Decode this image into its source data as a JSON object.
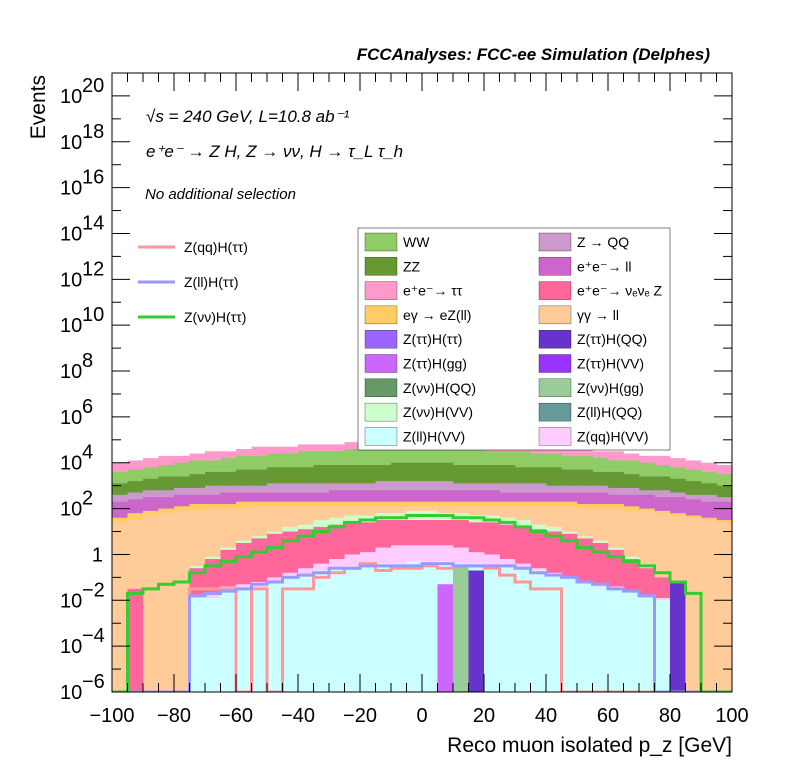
{
  "header": {
    "title": "FCCAnalyses: FCC-ee Simulation (Delphes)",
    "energy_line": "√s = 240 GeV, L=10.8 ab⁻¹",
    "process_line": "e⁺e⁻ → Z H, Z → νν, H → τ_L τ_h",
    "selection_line": "No additional selection"
  },
  "colors": {
    "WW": "#8fcc66",
    "ZZ": "#669933",
    "ee_tautau": "#ff99cc",
    "egamma_eZll": "#ffcc66",
    "Ztautau_Htautau": "#9966ff",
    "Ztautau_Hgg": "#cc66ff",
    "Znunu_HQQ": "#669966",
    "Znunu_HVV": "#ccffcc",
    "Zll_HVV": "#ccffff",
    "Z_QQ": "#cc99cc",
    "ee_ll": "#cc66cc",
    "ee_nunuZ": "#ff6699",
    "gammagamma_ll": "#ffcc99",
    "Ztautau_HQQ": "#6633cc",
    "Ztautau_HVV": "#9933ff",
    "Znunu_Hgg": "#99cc99",
    "Zll_HQQ": "#669999",
    "Zqq_HVV": "#ffccff",
    "sig_qq": "#ff9999",
    "sig_ll": "#9999ff",
    "sig_nunu": "#33cc33"
  },
  "chart_data": {
    "type": "histogram",
    "xlabel": "Reco muon isolated p_z [GeV]",
    "ylabel": "Events",
    "x_range": [
      -100,
      100
    ],
    "y_range_log": [
      1e-06,
      1e+21
    ],
    "log_y": true,
    "bin_width": 5,
    "x_ticks": [
      "−100",
      "−80",
      "−60",
      "−40",
      "−20",
      "0",
      "20",
      "40",
      "60",
      "80",
      "100"
    ],
    "y_ticks": [
      {
        "base": "10",
        "exp": "−6",
        "val": -6
      },
      {
        "base": "10",
        "exp": "−4",
        "val": -4
      },
      {
        "base": "10",
        "exp": "−2",
        "val": -2
      },
      {
        "base": "1",
        "exp": "",
        "val": 0
      },
      {
        "base": "10",
        "exp": "2",
        "val": 2
      },
      {
        "base": "10",
        "exp": "4",
        "val": 4
      },
      {
        "base": "10",
        "exp": "6",
        "val": 6
      },
      {
        "base": "10",
        "exp": "8",
        "val": 8
      },
      {
        "base": "10",
        "exp": "10",
        "val": 10
      },
      {
        "base": "10",
        "exp": "12",
        "val": 12
      },
      {
        "base": "10",
        "exp": "14",
        "val": 14
      },
      {
        "base": "10",
        "exp": "16",
        "val": 16
      },
      {
        "base": "10",
        "exp": "18",
        "val": 18
      },
      {
        "base": "10",
        "exp": "20",
        "val": 20
      }
    ],
    "stack_log10_totals": [
      {
        "name": "Z(ll)H(VV)",
        "color_key": "Zll_HVV",
        "log10": [
          -6,
          -6,
          -6,
          -6,
          -6,
          -1.9,
          -1.9,
          -1.6,
          -1.5,
          -1.5,
          -1.2,
          -1.0,
          -0.9,
          -0.7,
          -0.6,
          -0.5,
          -0.5,
          -0.4,
          -0.4,
          -0.3,
          -0.3,
          -0.3,
          -0.4,
          -0.4,
          -0.5,
          -0.5,
          -0.6,
          -0.7,
          -0.9,
          -1.0,
          -1.2,
          -1.4,
          -1.5,
          -1.6,
          -1.9,
          -2.0,
          -6,
          -6,
          -6,
          -6
        ]
      },
      {
        "name": "Z(qq)H(VV)",
        "color_key": "Zqq_HVV",
        "log10": [
          -6,
          -6,
          -6,
          -6,
          -6,
          -1.8,
          -1.7,
          -1.4,
          -1.3,
          -1.2,
          -1.0,
          -0.8,
          -0.6,
          -0.4,
          -0.2,
          0.0,
          0.1,
          0.3,
          0.4,
          0.4,
          0.4,
          0.4,
          0.3,
          0.1,
          0.0,
          -0.2,
          -0.4,
          -0.6,
          -0.8,
          -1.0,
          -1.2,
          -1.3,
          -1.4,
          -1.7,
          -1.8,
          -1.9,
          -6,
          -6,
          -6,
          -6
        ]
      },
      {
        "name": "e⁺e⁻→ ννZ",
        "color_key": "ee_nunuZ",
        "log10": [
          -6,
          -1.5,
          -6,
          -6,
          -6,
          -0.6,
          -0.2,
          0.2,
          0.5,
          0.7,
          0.9,
          1.0,
          1.1,
          1.2,
          1.3,
          1.4,
          1.4,
          1.5,
          1.5,
          1.5,
          1.5,
          1.5,
          1.5,
          1.4,
          1.4,
          1.3,
          1.2,
          1.1,
          1.0,
          0.9,
          0.7,
          0.5,
          0.2,
          -0.2,
          -0.6,
          -1.0,
          -6,
          -6,
          -6,
          -6
        ]
      },
      {
        "name": "Z(νν)H(VV)",
        "color_key": "Znunu_HVV",
        "log10": [
          -6,
          -1.5,
          -6,
          -6,
          -6,
          -0.5,
          -0.1,
          0.3,
          0.6,
          0.8,
          1.0,
          1.2,
          1.3,
          1.5,
          1.6,
          1.7,
          1.7,
          1.8,
          1.8,
          1.9,
          1.9,
          1.8,
          1.8,
          1.7,
          1.7,
          1.6,
          1.5,
          1.3,
          1.2,
          1.0,
          0.8,
          0.6,
          0.3,
          -0.1,
          -0.5,
          -1.0,
          -1.4,
          -6,
          -6,
          -6
        ]
      },
      {
        "name": "γγ → ll",
        "color_key": "gammagamma_ll",
        "log10": [
          1.4,
          1.5,
          1.7,
          1.8,
          1.9,
          1.9,
          2.0,
          2.0,
          2.0,
          2.1,
          2.1,
          2.1,
          2.1,
          2.1,
          2.1,
          2.1,
          2.1,
          2.1,
          2.1,
          2.1,
          2.1,
          2.1,
          2.1,
          2.1,
          2.1,
          2.1,
          2.1,
          2.1,
          2.1,
          2.1,
          2.0,
          2.0,
          2.0,
          1.9,
          1.9,
          1.8,
          1.7,
          1.6,
          1.5,
          1.4
        ]
      },
      {
        "name": "eγ → eZ(ll)",
        "color_key": "egamma_eZll",
        "log10": [
          1.6,
          1.8,
          1.9,
          2.0,
          2.1,
          2.2,
          2.2,
          2.2,
          2.3,
          2.3,
          2.3,
          2.3,
          2.3,
          2.3,
          2.3,
          2.3,
          2.3,
          2.3,
          2.3,
          2.3,
          2.3,
          2.3,
          2.3,
          2.3,
          2.3,
          2.3,
          2.3,
          2.3,
          2.3,
          2.3,
          2.2,
          2.2,
          2.2,
          2.1,
          2.0,
          1.9,
          1.8,
          1.7,
          1.6,
          1.5
        ]
      },
      {
        "name": "e⁺e⁻→ ll",
        "color_key": "ee_ll",
        "log10": [
          2.3,
          2.4,
          2.5,
          2.5,
          2.6,
          2.6,
          2.6,
          2.7,
          2.7,
          2.7,
          2.7,
          2.7,
          2.7,
          2.7,
          2.8,
          2.8,
          2.8,
          2.8,
          2.8,
          2.8,
          2.8,
          2.8,
          2.8,
          2.8,
          2.8,
          2.7,
          2.7,
          2.7,
          2.7,
          2.7,
          2.7,
          2.7,
          2.6,
          2.6,
          2.6,
          2.5,
          2.5,
          2.4,
          2.3,
          2.3
        ]
      },
      {
        "name": "Z → QQ",
        "color_key": "Z_QQ",
        "log10": [
          2.6,
          2.7,
          2.8,
          2.8,
          2.9,
          2.9,
          3.0,
          3.0,
          3.0,
          3.0,
          3.1,
          3.1,
          3.1,
          3.1,
          3.1,
          3.1,
          3.1,
          3.2,
          3.2,
          3.2,
          3.2,
          3.2,
          3.1,
          3.1,
          3.1,
          3.1,
          3.1,
          3.1,
          3.0,
          3.0,
          3.0,
          3.0,
          2.9,
          2.9,
          2.8,
          2.8,
          2.7,
          2.6,
          2.6,
          2.5
        ]
      },
      {
        "name": "ZZ",
        "color_key": "ZZ",
        "log10": [
          3.1,
          3.2,
          3.3,
          3.4,
          3.4,
          3.5,
          3.6,
          3.6,
          3.7,
          3.7,
          3.8,
          3.8,
          3.8,
          3.9,
          3.9,
          3.9,
          3.9,
          3.9,
          4.0,
          4.0,
          4.0,
          4.0,
          3.9,
          3.9,
          3.9,
          3.9,
          3.8,
          3.8,
          3.8,
          3.7,
          3.7,
          3.6,
          3.6,
          3.5,
          3.4,
          3.4,
          3.3,
          3.2,
          3.1,
          3.0
        ]
      },
      {
        "name": "WW",
        "color_key": "WW",
        "log10": [
          3.6,
          3.7,
          3.8,
          3.9,
          4.0,
          4.1,
          4.1,
          4.2,
          4.3,
          4.3,
          4.4,
          4.4,
          4.5,
          4.5,
          4.5,
          4.6,
          4.6,
          4.6,
          4.6,
          4.6,
          4.6,
          4.6,
          4.6,
          4.6,
          4.5,
          4.5,
          4.5,
          4.4,
          4.4,
          4.3,
          4.3,
          4.2,
          4.1,
          4.1,
          4.0,
          3.9,
          3.8,
          3.7,
          3.6,
          3.5
        ]
      },
      {
        "name": "e⁺e⁻→ ττ",
        "color_key": "ee_tautau",
        "log10": [
          4.0,
          4.1,
          4.2,
          4.3,
          4.3,
          4.4,
          4.5,
          4.5,
          4.6,
          4.7,
          4.7,
          4.7,
          4.8,
          4.8,
          4.8,
          4.9,
          4.9,
          4.9,
          4.9,
          4.9,
          4.9,
          4.9,
          4.9,
          4.9,
          4.8,
          4.8,
          4.8,
          4.7,
          4.7,
          4.6,
          4.6,
          4.5,
          4.5,
          4.4,
          4.3,
          4.3,
          4.2,
          4.1,
          4.0,
          3.9
        ]
      }
    ],
    "overlay_series": [
      {
        "name": "Z(qq)H(ττ)",
        "color_key": "sig_qq",
        "log10": [
          -6,
          -6,
          -6,
          -6,
          -6,
          -1.5,
          -1.5,
          -1.5,
          -6,
          -1.5,
          -6,
          -1.5,
          -1.5,
          -1.0,
          -0.8,
          -0.6,
          -0.4,
          -0.7,
          -0.6,
          -0.6,
          -0.5,
          -0.6,
          -0.5,
          -0.5,
          -0.6,
          -0.9,
          -1.2,
          -1.5,
          -1.5,
          -6,
          -6,
          -6,
          -6,
          -6,
          -6,
          -6,
          -6,
          -6,
          -6,
          -6
        ]
      },
      {
        "name": "Z(ll)H(ττ)",
        "color_key": "sig_ll",
        "log10": [
          -6,
          -6,
          -6,
          -6,
          -6,
          -1.8,
          -1.7,
          -1.6,
          -1.5,
          -1.3,
          -1.2,
          -1.0,
          -0.9,
          -0.8,
          -0.6,
          -0.6,
          -0.5,
          -0.5,
          -0.5,
          -0.5,
          -0.4,
          -0.4,
          -0.5,
          -0.5,
          -0.5,
          -0.5,
          -0.6,
          -0.8,
          -0.9,
          -1.0,
          -1.2,
          -1.3,
          -1.5,
          -1.6,
          -1.8,
          -6,
          -6,
          -6,
          -6,
          -6
        ]
      },
      {
        "name": "Z(νν)H(ττ)",
        "color_key": "sig_nunu",
        "log10": [
          -6,
          -1.7,
          -1.5,
          -1.3,
          -1.2,
          -0.8,
          -0.5,
          -0.3,
          -0.1,
          0.1,
          0.3,
          0.6,
          0.8,
          1.0,
          1.2,
          1.4,
          1.5,
          1.6,
          1.6,
          1.7,
          1.7,
          1.7,
          1.6,
          1.6,
          1.5,
          1.4,
          1.2,
          1.0,
          0.8,
          0.6,
          0.3,
          0.1,
          -0.1,
          -0.3,
          -0.5,
          -0.8,
          -1.2,
          -1.7,
          -6,
          -6
        ]
      }
    ],
    "signal_stack_bars": [
      {
        "bin": 36,
        "log10": -1.2,
        "color_key": "Ztautau_HQQ"
      },
      {
        "bin": 22,
        "log10": -0.5,
        "color_key": "Znunu_Hgg"
      },
      {
        "bin": 23,
        "log10": -0.7,
        "color_key": "Ztautau_HQQ"
      },
      {
        "bin": 21,
        "log10": -1.3,
        "color_key": "Ztautau_Hgg"
      }
    ],
    "legend_lines": [
      {
        "label": "Z(qq)H(ττ)",
        "color_key": "sig_qq"
      },
      {
        "label": "Z(ll)H(ττ)",
        "color_key": "sig_ll"
      },
      {
        "label": "Z(νν)H(ττ)",
        "color_key": "sig_nunu"
      }
    ],
    "legend_fills": [
      {
        "label": "WW",
        "color_key": "WW"
      },
      {
        "label": "Z → QQ",
        "color_key": "Z_QQ"
      },
      {
        "label": "ZZ",
        "color_key": "ZZ"
      },
      {
        "label": "e⁺e⁻→ ll",
        "color_key": "ee_ll"
      },
      {
        "label": "e⁺e⁻→ ττ",
        "color_key": "ee_tautau"
      },
      {
        "label": "e⁺e⁻→ νₑνₑ Z",
        "color_key": "ee_nunuZ"
      },
      {
        "label": "eγ → eZ(ll)",
        "color_key": "egamma_eZll"
      },
      {
        "label": "γγ → ll",
        "color_key": "gammagamma_ll"
      },
      {
        "label": "Z(ττ)H(ττ)",
        "color_key": "Ztautau_Htautau"
      },
      {
        "label": "Z(ττ)H(QQ)",
        "color_key": "Ztautau_HQQ"
      },
      {
        "label": "Z(ττ)H(gg)",
        "color_key": "Ztautau_Hgg"
      },
      {
        "label": "Z(ττ)H(VV)",
        "color_key": "Ztautau_HVV"
      },
      {
        "label": "Z(νν)H(QQ)",
        "color_key": "Znunu_HQQ"
      },
      {
        "label": "Z(νν)H(gg)",
        "color_key": "Znunu_Hgg"
      },
      {
        "label": "Z(νν)H(VV)",
        "color_key": "Znunu_HVV"
      },
      {
        "label": "Z(ll)H(QQ)",
        "color_key": "Zll_HQQ"
      },
      {
        "label": "Z(ll)H(VV)",
        "color_key": "Zll_HVV"
      },
      {
        "label": "Z(qq)H(VV)",
        "color_key": "Zqq_HVV"
      }
    ]
  }
}
